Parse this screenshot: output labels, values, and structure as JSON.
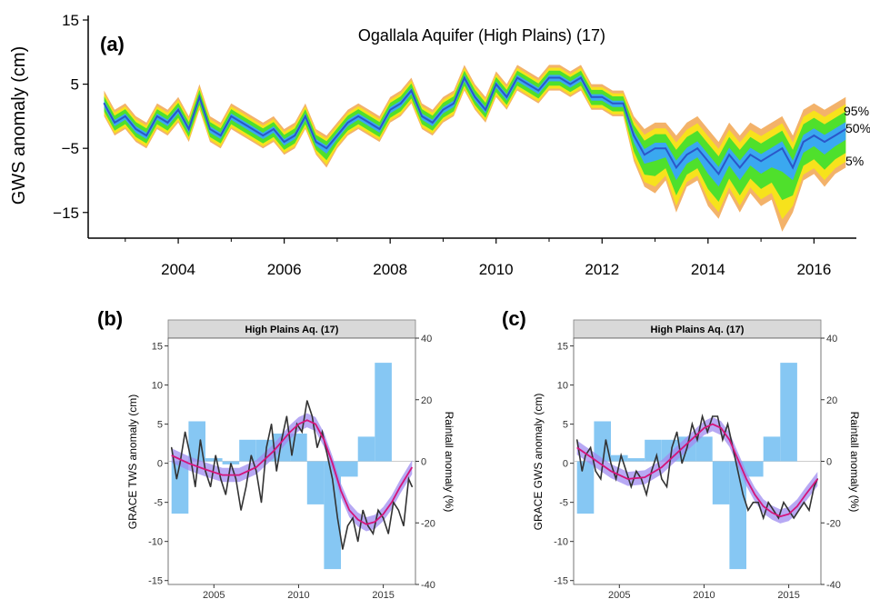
{
  "colors": {
    "median": "#2b57c9",
    "band_outer": "#f3b26a",
    "band_mid": "#f7e21c",
    "band_inner": "#4fe02c",
    "band_core": "#3aa8f0",
    "grace_line": "#333333",
    "trend_line": "#d4147a",
    "trend_ci": "#9f8cf0",
    "rain_bar": "#86c7f3",
    "strip": "#d9d9d9"
  },
  "chart_data": [
    {
      "id": "a",
      "type": "area",
      "panel_label": "(a)",
      "title": "Ogallala Aquifer (High Plains) (17)",
      "ylabel": "GWS anomaly (cm)",
      "xlabel": "",
      "xlim": [
        2002.3,
        2016.8
      ],
      "ylim": [
        -19,
        15
      ],
      "yticks": [
        15,
        5,
        -5,
        -15
      ],
      "xticks": [
        2004,
        2006,
        2008,
        2010,
        2012,
        2014,
        2016
      ],
      "band_labels": [
        "95%",
        "50%",
        "5%"
      ],
      "median": {
        "x": [
          2002.6,
          2002.8,
          2003.0,
          2003.2,
          2003.4,
          2003.6,
          2003.8,
          2004.0,
          2004.2,
          2004.4,
          2004.6,
          2004.8,
          2005.0,
          2005.2,
          2005.4,
          2005.6,
          2005.8,
          2006.0,
          2006.2,
          2006.4,
          2006.6,
          2006.8,
          2007.0,
          2007.2,
          2007.4,
          2007.6,
          2007.8,
          2008.0,
          2008.2,
          2008.4,
          2008.6,
          2008.8,
          2009.0,
          2009.2,
          2009.4,
          2009.6,
          2009.8,
          2010.0,
          2010.2,
          2010.4,
          2010.6,
          2010.8,
          2011.0,
          2011.2,
          2011.4,
          2011.6,
          2011.8,
          2012.0,
          2012.2,
          2012.4,
          2012.6,
          2012.8,
          2013.0,
          2013.2,
          2013.4,
          2013.6,
          2013.8,
          2014.0,
          2014.2,
          2014.4,
          2014.6,
          2014.8,
          2015.0,
          2015.2,
          2015.4,
          2015.6,
          2015.8,
          2016.0,
          2016.2,
          2016.4,
          2016.6
        ],
        "values": [
          2,
          -1,
          0,
          -2,
          -3,
          0,
          -1,
          1,
          -2,
          3,
          -2,
          -3,
          0,
          -1,
          -2,
          -3,
          -2,
          -4,
          -3,
          0,
          -4,
          -5,
          -3,
          -1,
          0,
          -1,
          -2,
          1,
          2,
          4,
          0,
          -1,
          1,
          2,
          6,
          3,
          1,
          5,
          3,
          6,
          5,
          4,
          6,
          6,
          5,
          6,
          3,
          3,
          2,
          2,
          -3,
          -6,
          -5,
          -5,
          -8,
          -6,
          -5,
          -7,
          -9,
          -6,
          -8,
          -6,
          -7,
          -6,
          -5,
          -8,
          -4,
          -3,
          -4,
          -3,
          -2
        ]
      },
      "band_5": {
        "values": [
          0,
          -3,
          -2,
          -4,
          -5,
          -2,
          -3,
          -1,
          -4,
          1,
          -4,
          -5,
          -2,
          -3,
          -4,
          -5,
          -4,
          -6,
          -5,
          -2,
          -6,
          -8,
          -5,
          -3,
          -2,
          -3,
          -4,
          -1,
          0,
          2,
          -2,
          -3,
          -1,
          0,
          4,
          1,
          -1,
          3,
          1,
          4,
          3,
          2,
          4,
          4,
          3,
          4,
          1,
          1,
          0,
          0,
          -7,
          -11,
          -12,
          -10,
          -15,
          -11,
          -10,
          -14,
          -16,
          -12,
          -15,
          -12,
          -14,
          -13,
          -18,
          -15,
          -10,
          -9,
          -11,
          -9,
          -8
        ]
      },
      "band_95": {
        "values": [
          4,
          1,
          2,
          0,
          -1,
          2,
          1,
          3,
          0,
          5,
          0,
          -1,
          2,
          1,
          0,
          -1,
          0,
          -2,
          -1,
          2,
          -2,
          -3,
          -1,
          1,
          2,
          1,
          0,
          3,
          4,
          6,
          2,
          1,
          3,
          4,
          8,
          5,
          3,
          7,
          5,
          8,
          7,
          6,
          8,
          8,
          7,
          8,
          5,
          5,
          4,
          4,
          0,
          -2,
          -1,
          -1,
          -3,
          -1,
          0,
          -2,
          -4,
          -1,
          -3,
          -1,
          -2,
          -1,
          0,
          -3,
          1,
          2,
          1,
          2,
          3
        ]
      }
    },
    {
      "id": "b",
      "type": "line",
      "panel_label": "(b)",
      "strip": "High Plains Aq. (17)",
      "ylabel": "GRACE TWS anomaly (cm)",
      "y2label": "Raintall anomaly (%)",
      "xlim": [
        2002.3,
        2016.9
      ],
      "ylim": [
        -15.5,
        16
      ],
      "y2lim": [
        -40,
        40
      ],
      "yticks": [
        -15,
        -10,
        -5,
        0,
        5,
        10,
        15
      ],
      "y2ticks": [
        -40,
        -20,
        0,
        20,
        40
      ],
      "xticks": [
        2005,
        2010,
        2015
      ],
      "rain_bars": {
        "x": [
          2003,
          2004,
          2005,
          2006,
          2007,
          2008,
          2009,
          2010,
          2011,
          2012,
          2013,
          2014,
          2015
        ],
        "values": [
          -17,
          13,
          1,
          -1,
          7,
          7,
          9,
          9,
          -14,
          -35,
          -5,
          8,
          32
        ]
      },
      "series": [
        {
          "x": [
            2002.5,
            2002.8,
            2003.0,
            2003.3,
            2003.6,
            2003.9,
            2004.2,
            2004.5,
            2004.8,
            2005.1,
            2005.4,
            2005.7,
            2006.0,
            2006.3,
            2006.6,
            2006.9,
            2007.2,
            2007.5,
            2007.8,
            2008.1,
            2008.4,
            2008.7,
            2009.0,
            2009.3,
            2009.6,
            2009.9,
            2010.2,
            2010.5,
            2010.8,
            2011.1,
            2011.4,
            2011.7,
            2012.0,
            2012.3,
            2012.6,
            2012.9,
            2013.2,
            2013.5,
            2013.8,
            2014.1,
            2014.4,
            2014.7,
            2015.0,
            2015.3,
            2015.6,
            2015.9,
            2016.2,
            2016.5,
            2016.7
          ],
          "values": [
            2,
            -2,
            0,
            4,
            1,
            -3,
            3,
            -1,
            -3,
            1,
            -2,
            -4,
            0,
            -2,
            -6,
            -3,
            1,
            -1,
            -5,
            2,
            5,
            -1,
            3,
            6,
            1,
            5,
            4,
            8,
            6,
            2,
            4,
            1,
            -2,
            -7,
            -11,
            -8,
            -7,
            -10,
            -6,
            -8,
            -9,
            -6,
            -7,
            -9,
            -5,
            -6,
            -8,
            -2,
            -3
          ]
        },
        {
          "x": [
            2002.5,
            2003.5,
            2004.5,
            2005.5,
            2006.5,
            2007.5,
            2008.5,
            2009.5,
            2010.0,
            2010.5,
            2011.0,
            2011.5,
            2012.0,
            2012.5,
            2013.0,
            2013.5,
            2014.0,
            2014.5,
            2015.0,
            2015.5,
            2016.0,
            2016.7
          ],
          "values": [
            1,
            0,
            -0.8,
            -1.5,
            -1.5,
            -0.5,
            1.5,
            4,
            5,
            5.5,
            5,
            3,
            0,
            -3.5,
            -6,
            -7.2,
            -7.8,
            -7.5,
            -6.5,
            -5,
            -3,
            -0.5
          ]
        }
      ]
    },
    {
      "id": "c",
      "type": "line",
      "panel_label": "(c)",
      "strip": "High Plains Aq. (17)",
      "ylabel": "GRACE GWS anomaly (cm)",
      "y2label": "Raintall anomaly (%)",
      "xlim": [
        2002.3,
        2016.9
      ],
      "ylim": [
        -15.5,
        16
      ],
      "y2lim": [
        -40,
        40
      ],
      "yticks": [
        -15,
        -10,
        -5,
        0,
        5,
        10,
        15
      ],
      "y2ticks": [
        -40,
        -20,
        0,
        20,
        40
      ],
      "xticks": [
        2005,
        2010,
        2015
      ],
      "rain_bars": {
        "x": [
          2003,
          2004,
          2005,
          2006,
          2007,
          2008,
          2009,
          2010,
          2011,
          2012,
          2013,
          2014,
          2015
        ],
        "values": [
          -17,
          13,
          2,
          1,
          7,
          7,
          8,
          8,
          -14,
          -35,
          -5,
          8,
          32
        ]
      },
      "series": [
        {
          "x": [
            2002.5,
            2002.8,
            2003.0,
            2003.3,
            2003.6,
            2003.9,
            2004.2,
            2004.5,
            2004.8,
            2005.1,
            2005.4,
            2005.7,
            2006.0,
            2006.3,
            2006.6,
            2006.9,
            2007.2,
            2007.5,
            2007.8,
            2008.1,
            2008.4,
            2008.7,
            2009.0,
            2009.3,
            2009.6,
            2009.9,
            2010.2,
            2010.5,
            2010.8,
            2011.1,
            2011.4,
            2011.7,
            2012.0,
            2012.3,
            2012.6,
            2012.9,
            2013.2,
            2013.5,
            2013.8,
            2014.1,
            2014.4,
            2014.7,
            2015.0,
            2015.3,
            2015.6,
            2015.9,
            2016.2,
            2016.5,
            2016.7
          ],
          "values": [
            3,
            -1,
            1,
            2,
            -1,
            -2,
            3,
            0,
            -2,
            1,
            -1,
            -3,
            -1,
            -2,
            -4,
            -1,
            1,
            -2,
            -3,
            2,
            4,
            0,
            2,
            5,
            3,
            6,
            4,
            6,
            6,
            3,
            5,
            2,
            -1,
            -4,
            -6,
            -5,
            -5,
            -7,
            -5,
            -6,
            -7,
            -5,
            -6,
            -7,
            -6,
            -5,
            -6,
            -3,
            -2
          ]
        },
        {
          "x": [
            2002.5,
            2003.5,
            2004.5,
            2005.5,
            2006.5,
            2007.5,
            2008.5,
            2009.5,
            2010.0,
            2010.5,
            2011.0,
            2011.5,
            2012.0,
            2012.5,
            2013.0,
            2013.5,
            2014.0,
            2014.5,
            2015.0,
            2015.5,
            2016.0,
            2016.7
          ],
          "values": [
            2,
            0.5,
            -1,
            -2,
            -1.8,
            -0.5,
            1.5,
            3.5,
            4.5,
            5,
            4.5,
            3,
            0.5,
            -2,
            -4,
            -5.5,
            -6.3,
            -6.8,
            -6.5,
            -5.5,
            -4,
            -2
          ]
        }
      ]
    }
  ]
}
